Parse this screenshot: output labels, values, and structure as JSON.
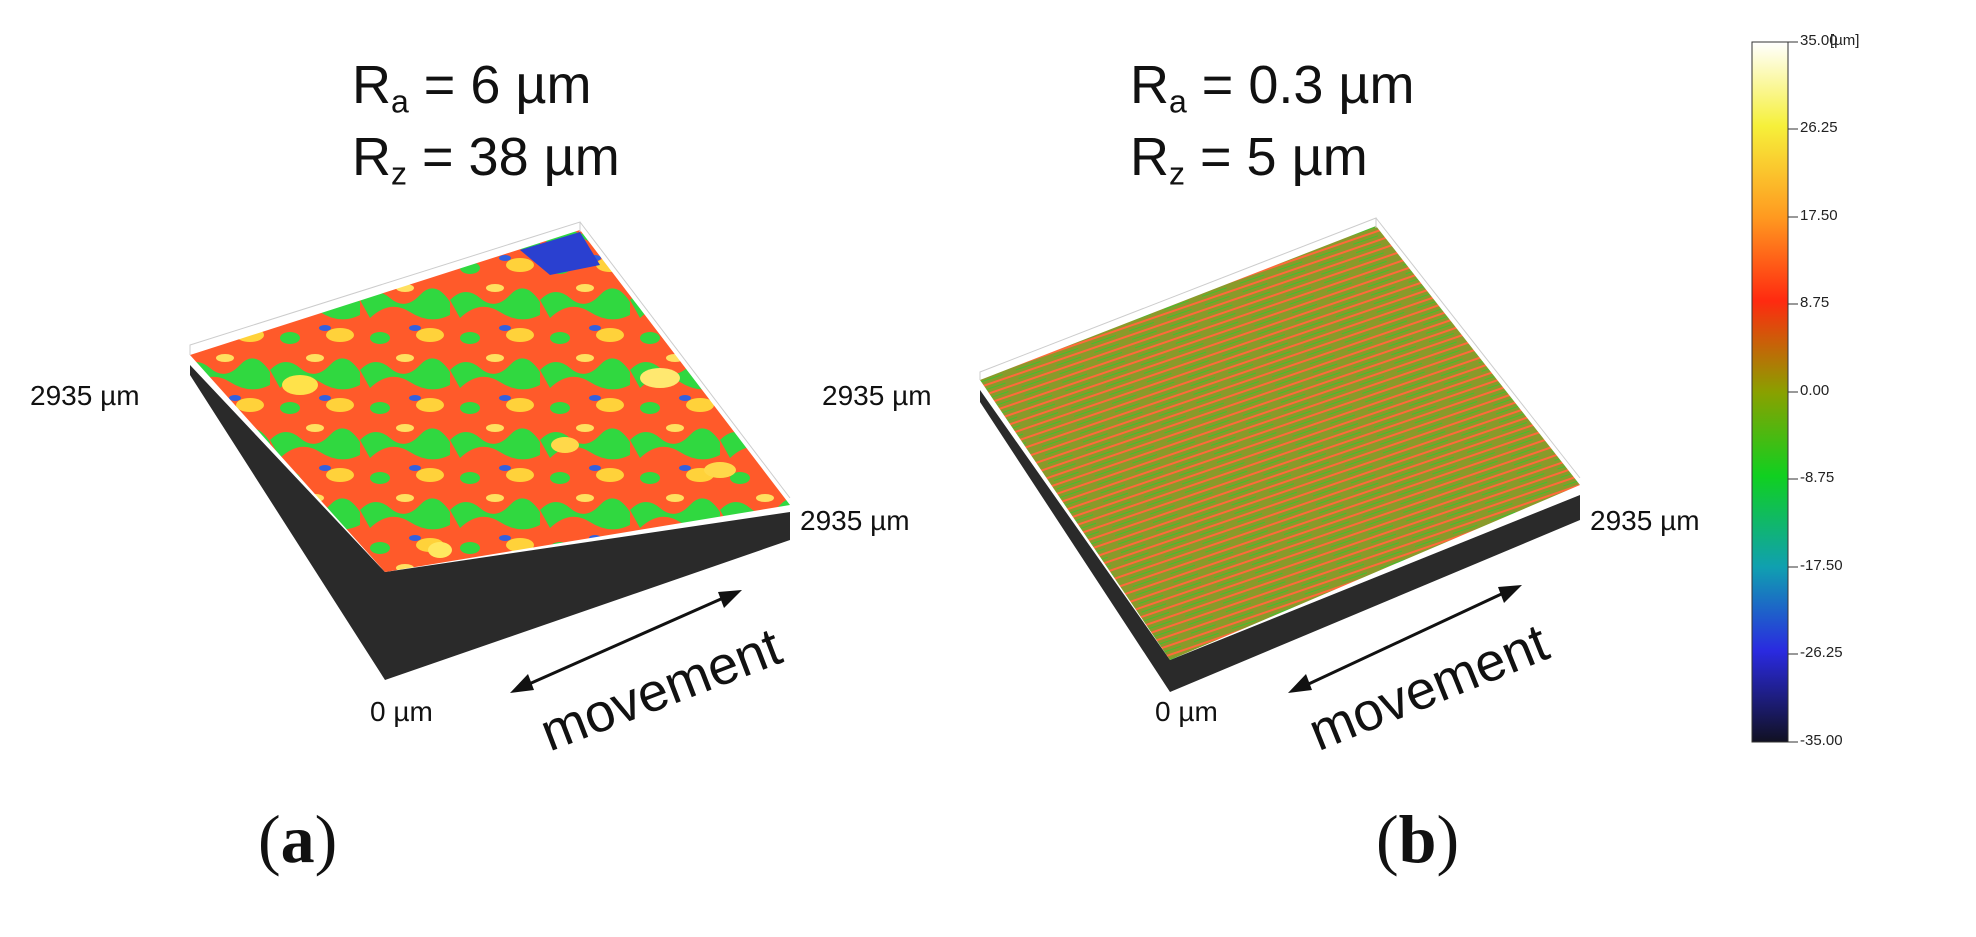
{
  "panel_a": {
    "ra_symbol": "R",
    "ra_sub": "a",
    "ra_value": " = 6 µm",
    "rz_symbol": "R",
    "rz_sub": "z",
    "rz_value": " = 38 µm",
    "left_dim": "2935 µm",
    "right_dim": "2935 µm",
    "origin": "0 µm",
    "movement": "movement",
    "caption_open": "(",
    "caption_letter": "a",
    "caption_close": ")"
  },
  "panel_b": {
    "ra_symbol": "R",
    "ra_sub": "a",
    "ra_value": " = 0.3 µm",
    "rz_symbol": "R",
    "rz_sub": "z",
    "rz_value": " = 5 µm",
    "left_dim": "2935 µm",
    "right_dim": "2935 µm",
    "origin": "0 µm",
    "movement": "movement",
    "caption_open": "(",
    "caption_letter": "b",
    "caption_close": ")"
  },
  "colorbar": {
    "unit": "[µm]",
    "ticks": [
      "35.00",
      "26.25",
      "17.50",
      "8.75",
      "0.00",
      "-8.75",
      "-17.50",
      "-26.25",
      "-35.00"
    ],
    "colors": [
      "#ffffff",
      "#f8f020",
      "#ff9a20",
      "#ff2a10",
      "#8aa000",
      "#10d020",
      "#10a0b0",
      "#2a2ae0",
      "#111122"
    ]
  }
}
